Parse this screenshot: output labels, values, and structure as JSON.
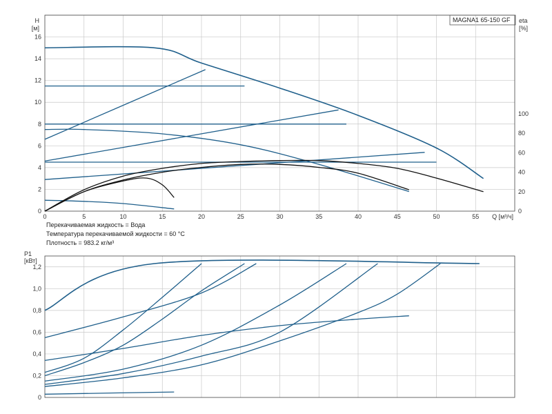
{
  "model": "MAGNA1 65-150 GF",
  "notes": [
    "Перекачиваемая жидкость = Вода",
    "Температура перекачиваемой жидкости = 60 °C",
    "Плотность = 983.2 кг/м³"
  ],
  "colors": {
    "curve": "#1f5f8b",
    "efficiency": "#111111",
    "grid": "#c8c8c8",
    "axis": "#444444"
  },
  "chart_data": [
    {
      "type": "line",
      "name": "head",
      "ylabel": [
        "H",
        "[м]"
      ],
      "y2label": [
        "eta",
        "[%]"
      ],
      "xlabel": "Q [м³/ч]",
      "xlim": [
        0,
        60
      ],
      "ylim": [
        0,
        18
      ],
      "y2lim": [
        0,
        100
      ],
      "xticks": [
        0,
        5,
        10,
        15,
        20,
        25,
        30,
        35,
        40,
        45,
        50,
        55
      ],
      "yticks": [
        0,
        2,
        4,
        6,
        8,
        10,
        12,
        14,
        16
      ],
      "y2ticks": [
        0,
        20,
        40,
        60,
        80,
        100
      ],
      "max_curve": [
        [
          0,
          15.0
        ],
        [
          14,
          15.0
        ],
        [
          20,
          13.6
        ],
        [
          30,
          11.3
        ],
        [
          40,
          8.8
        ],
        [
          50,
          5.8
        ],
        [
          56,
          3.0
        ]
      ],
      "min_curve": [
        [
          0,
          1.0
        ],
        [
          5,
          0.9
        ],
        [
          10,
          0.7
        ],
        [
          16.5,
          0.2
        ]
      ],
      "proportional_pressure_curves": [
        [
          [
            0,
            6.6
          ],
          [
            20.5,
            13.0
          ]
        ],
        [
          [
            0,
            4.6
          ],
          [
            37.5,
            9.3
          ]
        ],
        [
          [
            0,
            2.9
          ],
          [
            48.5,
            5.4
          ]
        ]
      ],
      "constant_pressure_curves": [
        [
          [
            0,
            11.5
          ],
          [
            25.5,
            11.5
          ]
        ],
        [
          [
            0,
            8.0
          ],
          [
            38.5,
            8.0
          ]
        ],
        [
          [
            0,
            4.5
          ],
          [
            50,
            4.5
          ]
        ]
      ],
      "speed_curves": [
        [
          [
            0,
            7.5
          ],
          [
            5,
            7.5
          ],
          [
            15,
            7.1
          ],
          [
            25,
            6.1
          ],
          [
            35,
            4.3
          ],
          [
            46.5,
            1.8
          ]
        ]
      ],
      "efficiency_curves": [
        [
          [
            0,
            0
          ],
          [
            5,
            20
          ],
          [
            10,
            31
          ],
          [
            13,
            34
          ],
          [
            15,
            27
          ],
          [
            16.5,
            14
          ]
        ],
        [
          [
            0,
            0
          ],
          [
            5,
            20
          ],
          [
            10,
            32
          ],
          [
            15,
            40
          ],
          [
            20,
            45
          ],
          [
            25,
            48
          ],
          [
            30,
            48
          ],
          [
            35,
            45
          ],
          [
            40,
            39
          ],
          [
            46.5,
            22
          ]
        ],
        [
          [
            0,
            0
          ],
          [
            5,
            22
          ],
          [
            10,
            36
          ],
          [
            15,
            44
          ],
          [
            20,
            49
          ],
          [
            25,
            51
          ],
          [
            30,
            52
          ],
          [
            35,
            52
          ],
          [
            40,
            49
          ],
          [
            45,
            44
          ],
          [
            50,
            34
          ],
          [
            56,
            20
          ]
        ]
      ]
    },
    {
      "type": "line",
      "name": "power",
      "ylabel": [
        "P1",
        "[кВт]"
      ],
      "xlim": [
        0,
        60
      ],
      "ylim": [
        0,
        1.3
      ],
      "yticks": [
        "0",
        "0,2",
        "0,4",
        "0,6",
        "0,8",
        "1,0",
        "1,2"
      ],
      "ytick_values": [
        0,
        0.2,
        0.4,
        0.6,
        0.8,
        1.0,
        1.2
      ],
      "max_curve": [
        [
          0,
          0.8
        ],
        [
          14,
          1.23
        ],
        [
          55.5,
          1.23
        ]
      ],
      "min_curve": [
        [
          0,
          0.03
        ],
        [
          16.5,
          0.05
        ]
      ],
      "speed_curves": [
        [
          [
            0,
            0.23
          ],
          [
            5,
            0.36
          ],
          [
            10,
            0.62
          ],
          [
            15,
            0.92
          ],
          [
            20,
            1.23
          ]
        ],
        [
          [
            0,
            0.2
          ],
          [
            5,
            0.32
          ],
          [
            10,
            0.48
          ],
          [
            15,
            0.72
          ],
          [
            20,
            0.98
          ],
          [
            25.5,
            1.23
          ]
        ],
        [
          [
            0,
            0.15
          ],
          [
            10,
            0.26
          ],
          [
            20,
            0.48
          ],
          [
            30,
            0.85
          ],
          [
            38.5,
            1.23
          ]
        ],
        [
          [
            0,
            0.12
          ],
          [
            10,
            0.22
          ],
          [
            20,
            0.38
          ],
          [
            30,
            0.6
          ],
          [
            42.5,
            1.23
          ]
        ],
        [
          [
            0,
            0.1
          ],
          [
            10,
            0.18
          ],
          [
            20,
            0.3
          ],
          [
            30,
            0.52
          ],
          [
            40,
            0.78
          ],
          [
            45,
            0.95
          ],
          [
            50.5,
            1.23
          ]
        ],
        [
          [
            0,
            0.55
          ],
          [
            10,
            0.74
          ],
          [
            20,
            0.96
          ],
          [
            27,
            1.23
          ]
        ],
        [
          [
            0,
            0.34
          ],
          [
            10,
            0.45
          ],
          [
            20,
            0.57
          ],
          [
            30,
            0.66
          ],
          [
            40,
            0.72
          ],
          [
            46.5,
            0.75
          ]
        ]
      ]
    }
  ]
}
